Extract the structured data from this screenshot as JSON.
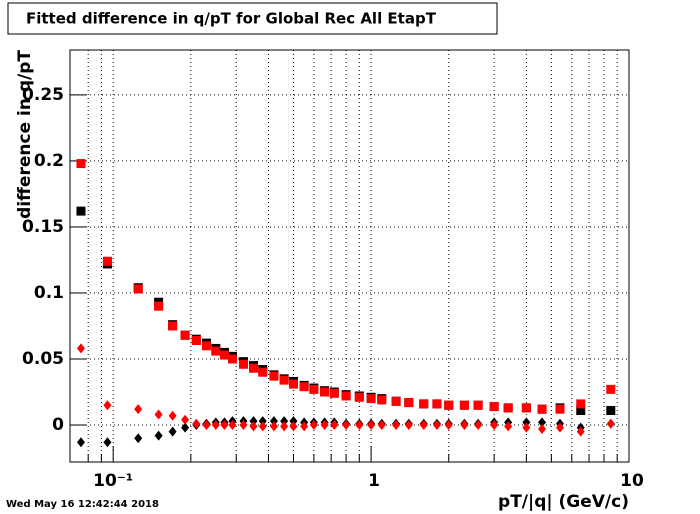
{
  "chart_data": {
    "type": "scatter",
    "title": "Fitted difference in q/pT for Global Rec All EtapT",
    "x_label": "pT/|q| (GeV/c)",
    "y_label": "difference in q/pT",
    "footer": "Wed May 16 12:42:44 2018",
    "x_log": true,
    "grid": true,
    "xlim": [
      0.068,
      10
    ],
    "ylim": [
      -0.028,
      0.284
    ],
    "xticks": [
      {
        "value": 0.1,
        "label": "10⁻¹"
      },
      1,
      10
    ],
    "xminorticks": [
      0.08,
      0.09,
      0.2,
      0.3,
      0.4,
      0.5,
      0.6,
      0.7,
      0.8,
      0.9,
      2,
      3,
      4,
      5,
      6,
      7,
      8,
      9
    ],
    "yticks": [
      0,
      0.05,
      0.1,
      0.15,
      0.2,
      0.25
    ],
    "x": [
      0.075,
      0.095,
      0.125,
      0.15,
      0.17,
      0.19,
      0.21,
      0.23,
      0.25,
      0.27,
      0.29,
      0.32,
      0.35,
      0.38,
      0.42,
      0.46,
      0.5,
      0.55,
      0.6,
      0.66,
      0.72,
      0.8,
      0.9,
      1.0,
      1.1,
      1.25,
      1.4,
      1.6,
      1.8,
      2.0,
      2.3,
      2.6,
      3.0,
      3.4,
      4.0,
      4.6,
      5.4,
      6.5,
      8.5
    ],
    "series": [
      {
        "marker": "square",
        "color": "#000000",
        "values": [
          0.162,
          0.122,
          0.104,
          0.093,
          0.076,
          0.068,
          0.065,
          0.062,
          0.058,
          0.055,
          0.052,
          0.048,
          0.045,
          0.042,
          0.038,
          0.035,
          0.033,
          0.03,
          0.028,
          0.026,
          0.025,
          0.023,
          0.022,
          0.021,
          0.02,
          0.018,
          0.017,
          0.016,
          0.016,
          0.015,
          0.015,
          0.015,
          0.014,
          0.013,
          0.013,
          0.012,
          0.013,
          0.011,
          0.011
        ]
      },
      {
        "marker": "diamond",
        "color": "#000000",
        "values": [
          -0.013,
          -0.013,
          -0.01,
          -0.008,
          -0.005,
          -0.002,
          0.0,
          0.001,
          0.002,
          0.002,
          0.003,
          0.003,
          0.003,
          0.003,
          0.003,
          0.003,
          0.003,
          0.002,
          0.002,
          0.002,
          0.002,
          0.001,
          0.001,
          0.001,
          0.001,
          0.001,
          0.001,
          0.001,
          0.001,
          0.001,
          0.001,
          0.001,
          0.002,
          0.002,
          0.002,
          0.002,
          0.001,
          -0.002,
          0.001
        ]
      },
      {
        "marker": "square",
        "color": "#ff0000",
        "values": [
          0.198,
          0.124,
          0.103,
          0.09,
          0.075,
          0.068,
          0.064,
          0.06,
          0.056,
          0.053,
          0.05,
          0.046,
          0.043,
          0.04,
          0.037,
          0.034,
          0.031,
          0.029,
          0.027,
          0.025,
          0.024,
          0.022,
          0.021,
          0.02,
          0.019,
          0.018,
          0.017,
          0.016,
          0.016,
          0.015,
          0.015,
          0.015,
          0.014,
          0.013,
          0.013,
          0.012,
          0.012,
          0.016,
          0.027
        ]
      },
      {
        "marker": "diamond",
        "color": "#ff0000",
        "values": [
          0.058,
          0.015,
          0.012,
          0.008,
          0.007,
          0.004,
          0.001,
          0.0,
          0.0,
          0.0,
          0.0,
          0.0,
          -0.001,
          -0.001,
          -0.001,
          -0.001,
          -0.001,
          -0.001,
          0.0,
          0.0,
          0.0,
          0.0,
          0.0,
          0.0,
          0.0,
          0.0,
          0.0,
          0.0,
          0.0,
          0.0,
          0.0,
          0.0,
          0.0,
          -0.001,
          -0.002,
          -0.003,
          -0.002,
          -0.005,
          0.001
        ]
      }
    ]
  }
}
